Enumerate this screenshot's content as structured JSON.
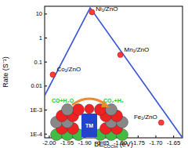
{
  "chart_data": {
    "type": "scatter",
    "xlabel": {
      "text": "BE",
      "sub": "COOH",
      "after": " (eV)"
    },
    "ylabel": "Rate (S⁻¹)",
    "log": "y",
    "xlim": [
      -2.013,
      -1.625
    ],
    "ylim": [
      7e-05,
      21
    ],
    "xticks": [
      {
        "value": -2.0,
        "label": "-2.00"
      },
      {
        "value": -1.95,
        "label": "-1.95"
      },
      {
        "value": -1.9,
        "label": "-1.90"
      },
      {
        "value": -1.85,
        "label": "-1.85"
      },
      {
        "value": -1.8,
        "label": "-1.80"
      },
      {
        "value": -1.75,
        "label": "-1.75"
      },
      {
        "value": -1.7,
        "label": "-1.70"
      },
      {
        "value": -1.65,
        "label": "-1.65"
      }
    ],
    "yticks": [
      {
        "value": 0.0001,
        "label": "1E-4"
      },
      {
        "value": 0.001,
        "label": "1E-3"
      },
      0.01,
      0.1,
      1,
      10
    ],
    "series": [
      {
        "type": "line",
        "color": "#3a55d6",
        "x": [
          -2.013,
          -1.885,
          -1.625
        ],
        "values": [
          0.004,
          18,
          7e-05
        ]
      },
      {
        "type": "scatter",
        "color": "#ff3b3b",
        "marker": "circle",
        "x": [
          -1.99,
          -1.88,
          -1.8,
          -1.685
        ],
        "values": [
          0.03,
          12,
          0.2,
          0.0003
        ],
        "labels": [
          "Co₁/ZnO",
          "Ni₁/ZnO",
          "Mn₁/ZnO",
          "Fe₁/ZnO"
        ]
      }
    ],
    "annotations": [
      "CO+H₂O",
      "CO₂+H₂",
      "TM"
    ]
  }
}
